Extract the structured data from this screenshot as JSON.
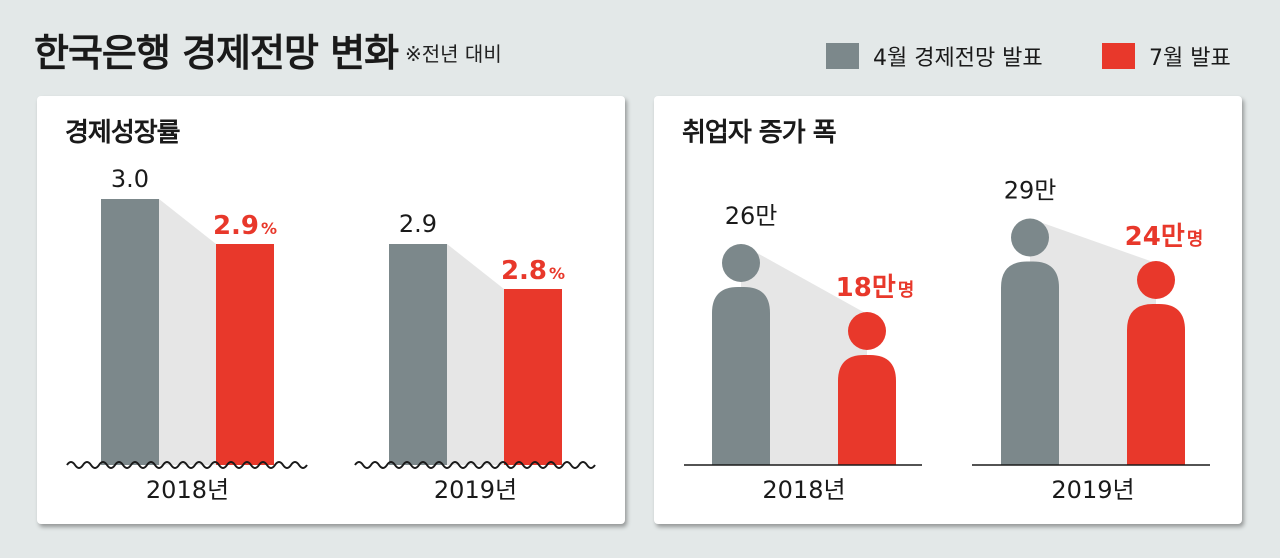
{
  "header": {
    "title": "한국은행 경제전망 변화",
    "subtitle": "※전년 대비"
  },
  "legend": [
    {
      "label": "4월 경제전망 발표",
      "color": "#7c888b"
    },
    {
      "label": "7월 발표",
      "color": "#e8382b"
    }
  ],
  "colors": {
    "april": "#7c888b",
    "july": "#e8382b",
    "connector": "#e6e6e6"
  },
  "chart_data": [
    {
      "type": "bar",
      "title": "경제성장률",
      "categories": [
        "2018년",
        "2019년"
      ],
      "series": [
        {
          "name": "4월 경제전망 발표",
          "values": [
            3.0,
            2.9
          ],
          "labels": [
            "3.0",
            "2.9"
          ]
        },
        {
          "name": "7월 발표",
          "values": [
            2.9,
            2.8
          ],
          "labels": [
            "2.9",
            "2.8"
          ],
          "unit": "%"
        }
      ]
    },
    {
      "type": "bar",
      "title": "취업자 증가 폭",
      "categories": [
        "2018년",
        "2019년"
      ],
      "series": [
        {
          "name": "4월 경제전망 발표",
          "values": [
            26,
            29
          ],
          "labels": [
            "26만",
            "29만"
          ]
        },
        {
          "name": "7월 발표",
          "values": [
            18,
            24
          ],
          "labels": [
            "18만",
            "24만"
          ],
          "unit": "명"
        }
      ]
    }
  ]
}
